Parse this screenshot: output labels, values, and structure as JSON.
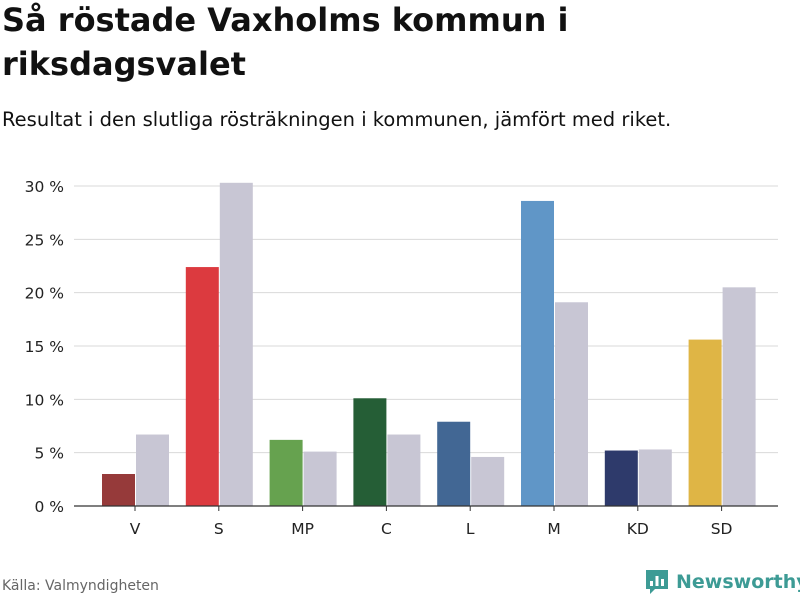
{
  "title": "Så röstade Vaxholms kommun i riksdagsvalet",
  "subtitle": "Resultat i den slutliga rösträkningen i kommunen, jämfört med riket.",
  "source": "Källa: Valmyndigheten",
  "brand": "Newsworthy",
  "colors": {
    "grid": "#d9d9d9",
    "axis": "#333333",
    "national": "#c8c6d4",
    "brand": "#3d9b95"
  },
  "chart_data": {
    "type": "bar",
    "categories": [
      "V",
      "S",
      "MP",
      "C",
      "L",
      "M",
      "KD",
      "SD"
    ],
    "series": [
      {
        "name": "Vaxholms kommun",
        "values": [
          3.0,
          22.4,
          6.2,
          10.1,
          7.9,
          28.6,
          5.2,
          15.6
        ],
        "colors": [
          "#963a3a",
          "#dc3a3f",
          "#66a24f",
          "#255e36",
          "#426794",
          "#6096c7",
          "#2e3a6b",
          "#dfb545"
        ]
      },
      {
        "name": "Riket",
        "values": [
          6.7,
          30.3,
          5.1,
          6.7,
          4.6,
          19.1,
          5.3,
          20.5
        ],
        "color": "#c8c6d4"
      }
    ],
    "yticks": [
      "0 %",
      "5 %",
      "10 %",
      "15 %",
      "20 %",
      "25 %",
      "30 %"
    ],
    "ylim": [
      0,
      30
    ],
    "xlabel": "",
    "ylabel": "",
    "grid": true
  }
}
